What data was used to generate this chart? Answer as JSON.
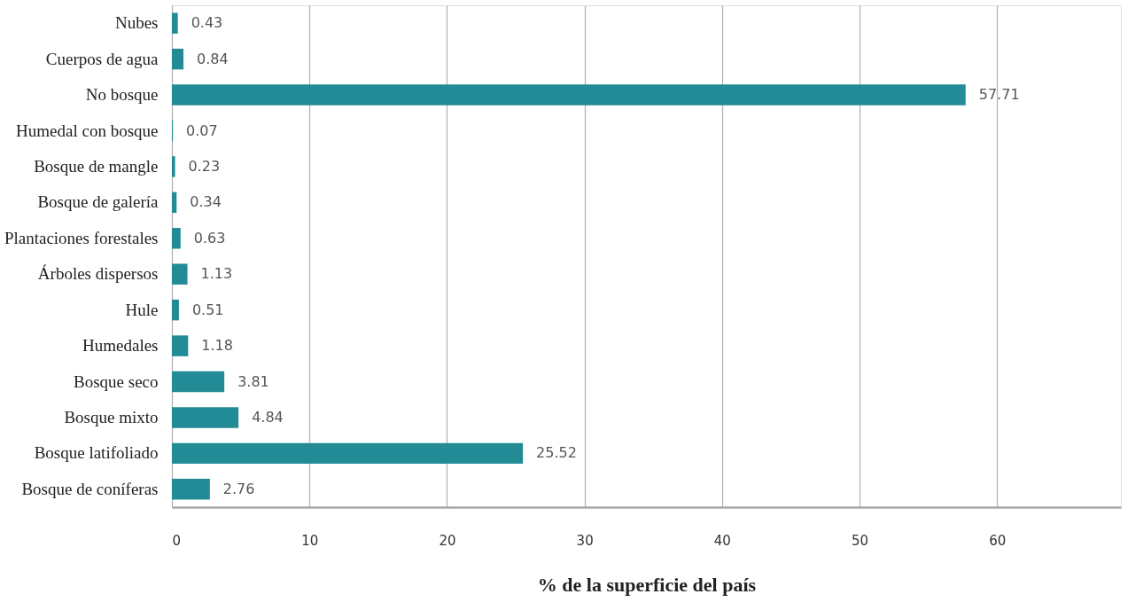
{
  "chart_data": {
    "type": "bar",
    "orientation": "horizontal",
    "xlabel": "% de la superficie del país",
    "categories": [
      "Nubes",
      "Cuerpos de agua",
      "No bosque",
      "Humedal con bosque",
      "Bosque de mangle",
      "Bosque de galería",
      "Plantaciones forestales",
      "Árboles dispersos",
      "Hule",
      "Humedales",
      "Bosque seco",
      "Bosque mixto",
      "Bosque latifoliado",
      "Bosque de coníferas"
    ],
    "values": [
      0.43,
      0.84,
      57.71,
      0.07,
      0.23,
      0.34,
      0.63,
      1.13,
      0.51,
      1.18,
      3.81,
      4.84,
      25.52,
      2.76
    ],
    "color": "#228b96",
    "xlim": [
      0,
      69
    ],
    "xticks": [
      0,
      10,
      20,
      30,
      40,
      50,
      60
    ],
    "grid": "x",
    "data_labels": true
  }
}
